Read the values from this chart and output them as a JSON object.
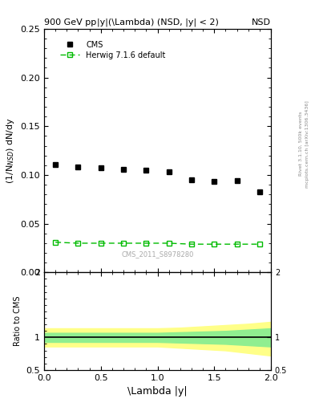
{
  "title_left": "900 GeV pp",
  "title_right": "NSD",
  "plot_title": "|y|(\\Lambda) (NSD, |y| < 2)",
  "ylabel_main": "(1/N$_{NSD}$) dN/dy",
  "ylabel_ratio": "Ratio to CMS",
  "xlabel": "\\Lambda |y|",
  "right_label": "Rivet 3.1.10, 500k events",
  "right_label2": "mcplots.cern.ch [arXiv:1306.3436]",
  "watermark": "CMS_2011_S8978280",
  "cms_x": [
    0.1,
    0.3,
    0.5,
    0.7,
    0.9,
    1.1,
    1.3,
    1.5,
    1.7,
    1.9
  ],
  "cms_y": [
    0.111,
    0.108,
    0.107,
    0.106,
    0.105,
    0.103,
    0.095,
    0.093,
    0.094,
    0.083
  ],
  "herwig_x": [
    0.1,
    0.3,
    0.5,
    0.7,
    0.9,
    1.1,
    1.3,
    1.5,
    1.7,
    1.9
  ],
  "herwig_y": [
    0.031,
    0.03,
    0.03,
    0.03,
    0.03,
    0.03,
    0.029,
    0.029,
    0.029,
    0.029
  ],
  "ratio_x": [
    0.0,
    0.2,
    0.4,
    0.6,
    0.8,
    1.0,
    1.2,
    1.4,
    1.6,
    1.8,
    2.0
  ],
  "ratio_green_upper": [
    1.07,
    1.07,
    1.07,
    1.07,
    1.07,
    1.07,
    1.08,
    1.09,
    1.1,
    1.12,
    1.14
  ],
  "ratio_green_lower": [
    0.93,
    0.93,
    0.93,
    0.93,
    0.93,
    0.93,
    0.92,
    0.91,
    0.9,
    0.88,
    0.86
  ],
  "ratio_yellow_upper": [
    1.14,
    1.14,
    1.14,
    1.14,
    1.14,
    1.14,
    1.15,
    1.17,
    1.19,
    1.21,
    1.24
  ],
  "ratio_yellow_lower": [
    0.86,
    0.86,
    0.86,
    0.86,
    0.86,
    0.86,
    0.84,
    0.82,
    0.8,
    0.76,
    0.72
  ],
  "ylim_main": [
    0.0,
    0.25
  ],
  "ylim_ratio": [
    0.5,
    2.0
  ],
  "xlim": [
    0.0,
    2.0
  ],
  "cms_color": "#000000",
  "herwig_color": "#00bb00",
  "green_band_color": "#90ee90",
  "yellow_band_color": "#ffff88",
  "ratio_line_color": "#000000"
}
